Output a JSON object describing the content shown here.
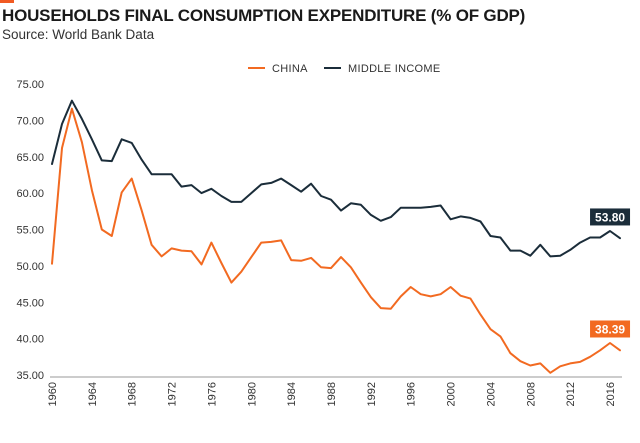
{
  "header": {
    "title": "HOUSEHOLDS FINAL CONSUMPTION EXPENDITURE (% OF GDP)",
    "subtitle": "Source: World Bank Data"
  },
  "colors": {
    "accent": "#f15a22",
    "china": "#f26a21",
    "middle_income": "#1b2d3a",
    "axis": "#333333"
  },
  "chart_data": {
    "type": "line",
    "title": "HOUSEHOLDS FINAL CONSUMPTION EXPENDITURE (% OF GDP)",
    "subtitle": "Source: World Bank Data",
    "xlabel": "",
    "ylabel": "",
    "xlim": [
      1960,
      2017
    ],
    "ylim": [
      35,
      75
    ],
    "x_ticks": [
      "1960",
      "1964",
      "1968",
      "1972",
      "1976",
      "1980",
      "1984",
      "1988",
      "1992",
      "1996",
      "2000",
      "2004",
      "2008",
      "2012",
      "2016"
    ],
    "y_ticks": [
      "35.00",
      "40.00",
      "45.00",
      "50.00",
      "55.00",
      "60.00",
      "65.00",
      "70.00",
      "75.00"
    ],
    "grid": false,
    "legend_position": "top-center",
    "x": [
      1960,
      1961,
      1962,
      1963,
      1964,
      1965,
      1966,
      1967,
      1968,
      1969,
      1970,
      1971,
      1972,
      1973,
      1974,
      1975,
      1976,
      1977,
      1978,
      1979,
      1980,
      1981,
      1982,
      1983,
      1984,
      1985,
      1986,
      1987,
      1988,
      1989,
      1990,
      1991,
      1992,
      1993,
      1994,
      1995,
      1996,
      1997,
      1998,
      1999,
      2000,
      2001,
      2002,
      2003,
      2004,
      2005,
      2006,
      2007,
      2008,
      2009,
      2010,
      2011,
      2012,
      2013,
      2014,
      2015,
      2016,
      2017
    ],
    "series": [
      {
        "name": "CHINA",
        "color": "#f26a21",
        "values": [
          50.3,
          66.2,
          71.6,
          67.0,
          60.4,
          55.0,
          54.1,
          60.1,
          62.0,
          57.6,
          52.9,
          51.3,
          52.4,
          52.1,
          52.0,
          50.2,
          53.2,
          50.4,
          47.7,
          49.2,
          51.2,
          53.2,
          53.3,
          53.5,
          50.8,
          50.7,
          51.1,
          49.8,
          49.7,
          51.2,
          49.8,
          47.7,
          45.7,
          44.2,
          44.1,
          45.8,
          47.1,
          46.1,
          45.8,
          46.1,
          47.1,
          45.9,
          45.5,
          43.3,
          41.3,
          40.3,
          38.0,
          36.9,
          36.3,
          36.6,
          35.3,
          36.2,
          36.6,
          36.8,
          37.5,
          38.4,
          39.4,
          38.39
        ]
      },
      {
        "name": "MIDDLE INCOME",
        "color": "#1b2d3a",
        "values": [
          64.0,
          69.5,
          72.7,
          70.2,
          67.4,
          64.5,
          64.4,
          67.4,
          66.9,
          64.6,
          62.6,
          62.6,
          62.6,
          60.9,
          61.1,
          60.0,
          60.6,
          59.6,
          58.8,
          58.8,
          60.0,
          61.2,
          61.4,
          62.0,
          61.1,
          60.2,
          61.3,
          59.6,
          59.1,
          57.6,
          58.6,
          58.4,
          57.0,
          56.2,
          56.7,
          58.0,
          58.0,
          58.0,
          58.1,
          58.3,
          56.4,
          56.8,
          56.6,
          56.1,
          54.1,
          53.9,
          52.1,
          52.1,
          51.4,
          52.9,
          51.3,
          51.4,
          52.2,
          53.2,
          53.9,
          53.9,
          54.8,
          53.8
        ]
      }
    ],
    "annotations": [
      {
        "series": "MIDDLE INCOME",
        "x": 2016,
        "label": "53.80"
      },
      {
        "series": "CHINA",
        "x": 2016,
        "label": "38.39"
      }
    ]
  }
}
